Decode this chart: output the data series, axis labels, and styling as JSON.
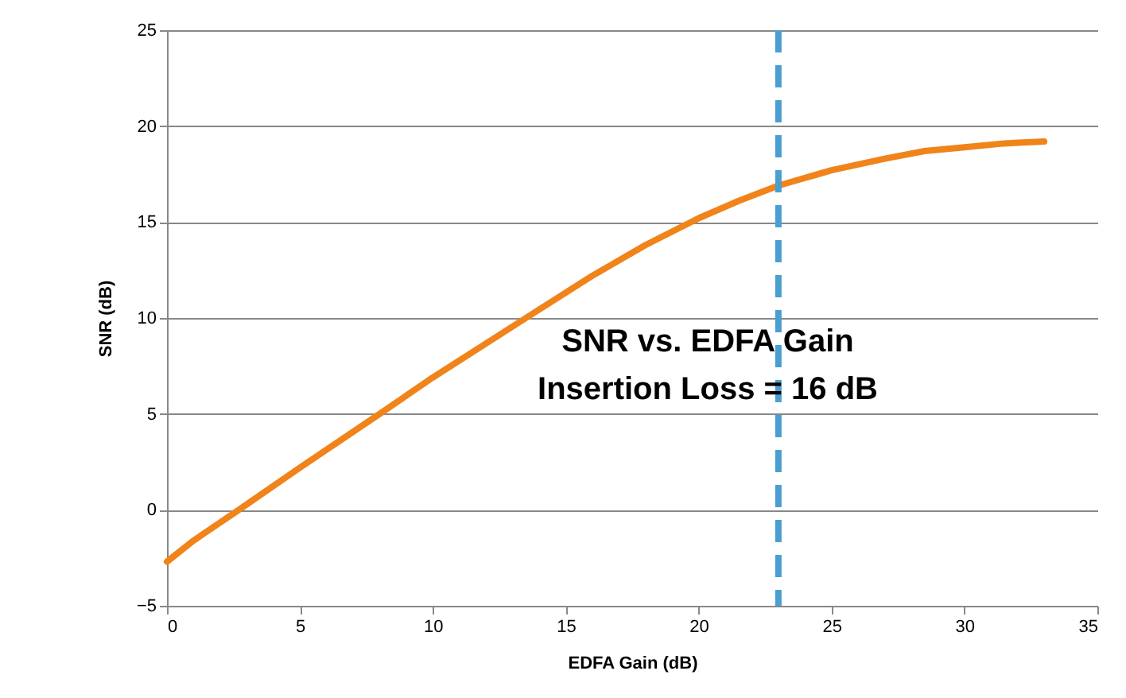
{
  "chart_data": {
    "type": "line",
    "x": [
      0,
      1,
      2.7,
      5,
      8,
      10,
      13.5,
      16,
      18,
      20,
      21.5,
      23,
      25,
      27,
      28.5,
      30,
      31.5,
      33
    ],
    "series": [
      {
        "color": "#f0841a",
        "values": [
          -2.7,
          -1.6,
          0,
          2.2,
          5,
          6.9,
          10,
          12.2,
          13.8,
          15.2,
          16.1,
          16.9,
          17.7,
          18.3,
          18.7,
          18.9,
          19.1,
          19.2
        ]
      }
    ],
    "xlabel": "EDFA Gain (dB)",
    "ylabel": "SNR (dB)",
    "annotations": [
      "SNR vs. EDFA Gain",
      "Insertion Loss = 16 dB"
    ],
    "xlim": [
      0,
      35
    ],
    "xticks": [
      0,
      5,
      10,
      15,
      20,
      25,
      30,
      35
    ],
    "ylim": [
      -5,
      25
    ],
    "yticks": [
      -5,
      0,
      5,
      10,
      15,
      20,
      25
    ],
    "ref_lines": [
      {
        "axis": "x",
        "value": 23,
        "color": "#4a9fd0",
        "line_style": "dashed"
      }
    ],
    "grid": "y",
    "marker": "none",
    "line_style": "solid"
  }
}
